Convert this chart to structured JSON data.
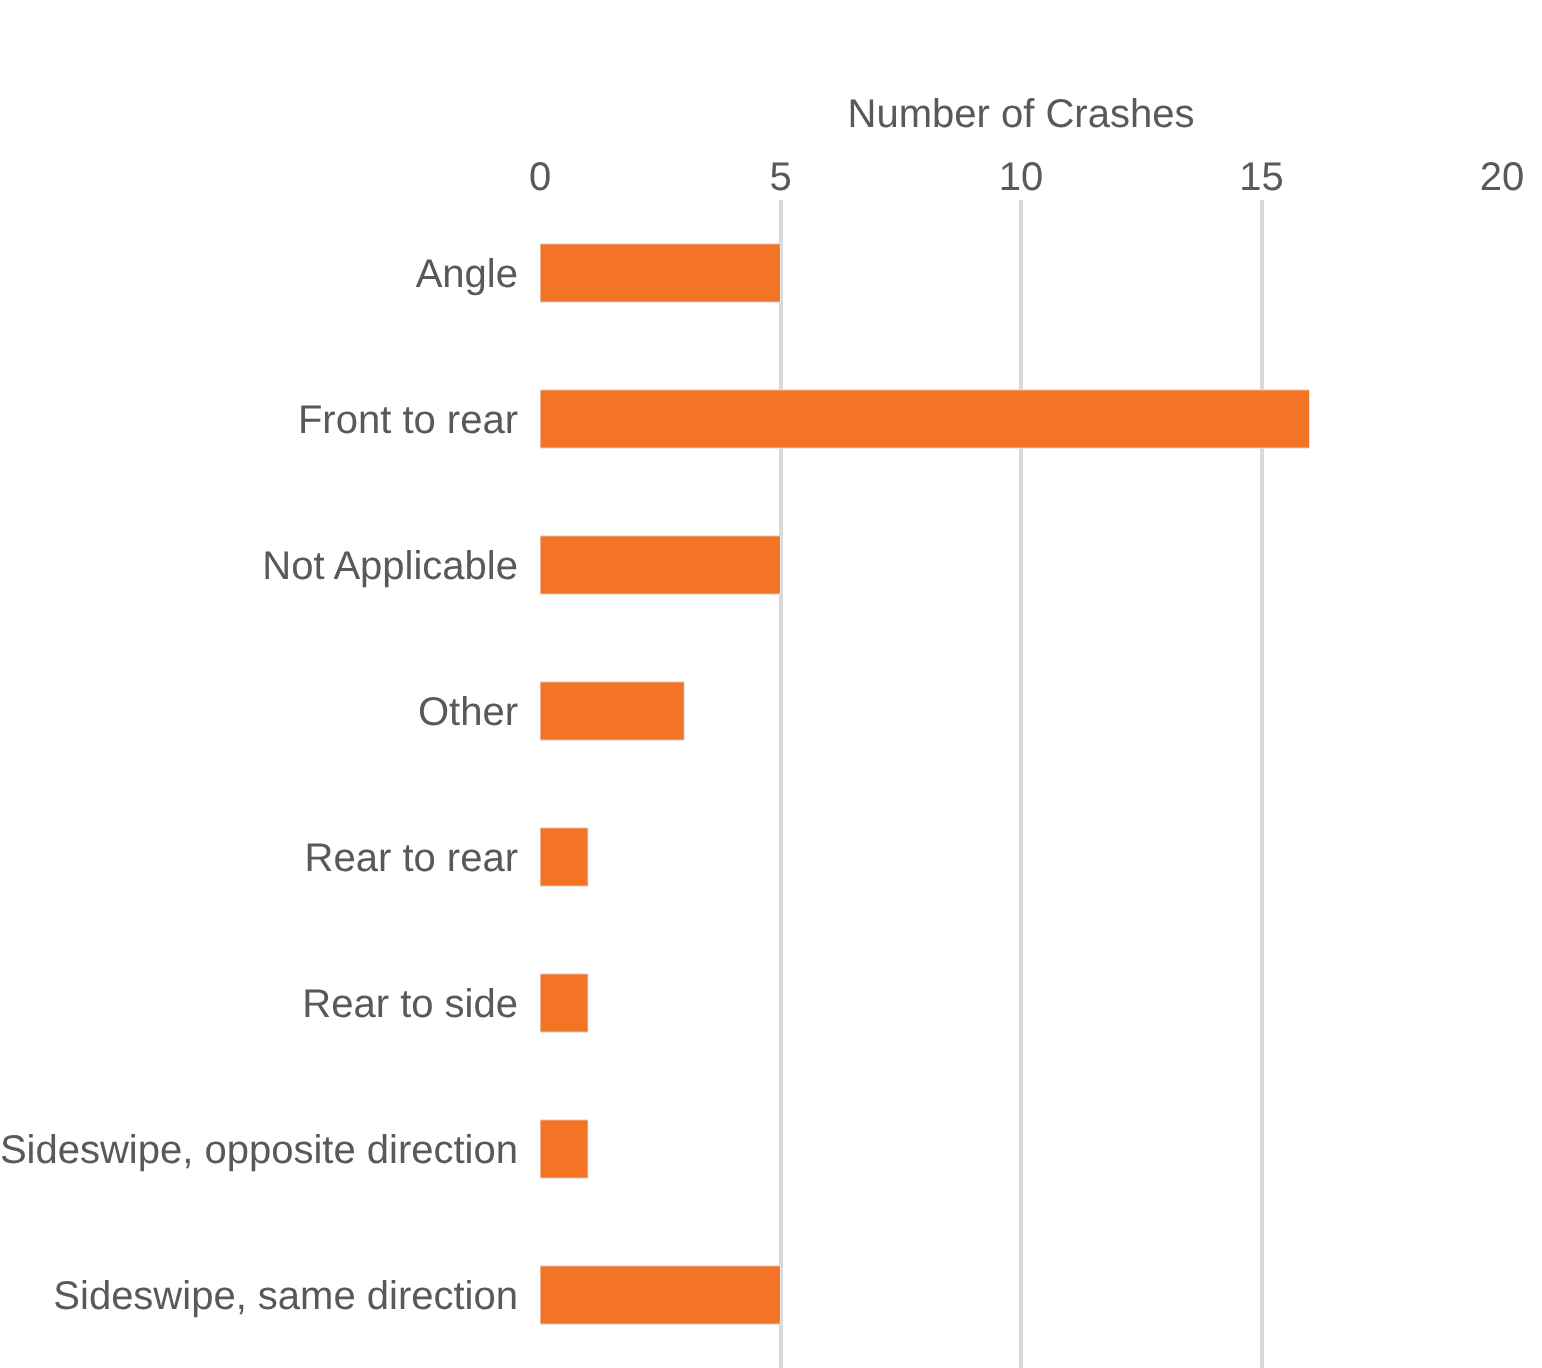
{
  "chart_data": {
    "type": "bar",
    "orientation": "horizontal",
    "xlabel": "Number of Crashes",
    "categories": [
      "Angle",
      "Front to rear",
      "Not Applicable",
      "Other",
      "Rear to rear",
      "Rear to side",
      "Sideswipe, opposite direction",
      "Sideswipe, same direction"
    ],
    "values": [
      5,
      16,
      5,
      3,
      1,
      1,
      1,
      5
    ],
    "color": "#f47425",
    "xlim": [
      0,
      20
    ],
    "xticks": [
      0,
      5,
      10,
      15,
      20
    ],
    "grid": "x",
    "legend": false
  }
}
